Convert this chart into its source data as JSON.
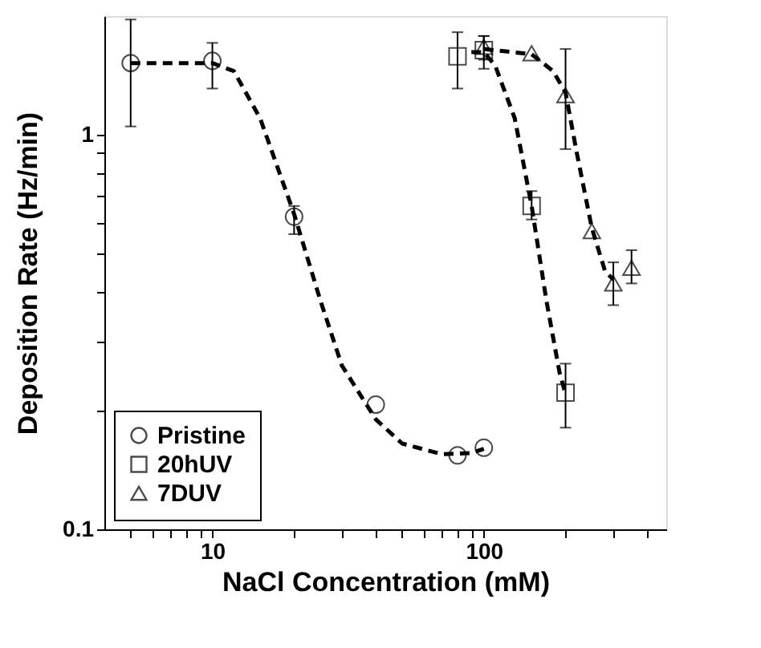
{
  "chart_data": {
    "type": "scatter",
    "xlabel": "NaCl Concentration (mM)",
    "ylabel": "Deposition Rate (Hz/min)",
    "log": "xy",
    "grid": false,
    "legend": "bottom left",
    "xlim": [
      4,
      470
    ],
    "ylim": [
      0.1,
      2
    ],
    "xticks": [
      {
        "value": 5,
        "label": null
      },
      {
        "value": 6,
        "label": null
      },
      {
        "value": 7,
        "label": null
      },
      {
        "value": 8,
        "label": null
      },
      {
        "value": 9,
        "label": null
      },
      10,
      {
        "value": 20,
        "label": null
      },
      {
        "value": 30,
        "label": null
      },
      {
        "value": 40,
        "label": null
      },
      {
        "value": 50,
        "label": null
      },
      {
        "value": 60,
        "label": null
      },
      {
        "value": 70,
        "label": null
      },
      {
        "value": 80,
        "label": null
      },
      {
        "value": 90,
        "label": null
      },
      100,
      {
        "value": 200,
        "label": null
      },
      {
        "value": 300,
        "label": null
      },
      {
        "value": 400,
        "label": null
      }
    ],
    "yticks": [
      0.1,
      {
        "value": 0.2,
        "label": null
      },
      {
        "value": 0.3,
        "label": null
      },
      {
        "value": 0.4,
        "label": null
      },
      {
        "value": 0.5,
        "label": null
      },
      {
        "value": 0.6,
        "label": null
      },
      {
        "value": 0.7,
        "label": null
      },
      {
        "value": 0.8,
        "label": null
      },
      {
        "value": 0.9,
        "label": null
      },
      1
    ],
    "series": [
      {
        "name": "Pristine",
        "color": "#000000",
        "marker": "circle",
        "x": [
          5,
          10,
          20,
          40,
          80,
          100
        ],
        "values": [
          1.52,
          1.54,
          0.62,
          0.207,
          0.154,
          0.161
        ],
        "errors": [
          [
            1.05,
            1.96
          ],
          [
            1.31,
            1.71
          ],
          [
            0.56,
            0.66
          ],
          null,
          null,
          null
        ]
      },
      {
        "name": "20hUV",
        "color": "#000000",
        "marker": "square",
        "x": [
          80,
          100,
          150,
          200
        ],
        "values": [
          1.58,
          1.64,
          0.66,
          0.222
        ],
        "errors": [
          [
            1.31,
            1.82
          ],
          [
            1.47,
            1.78
          ],
          [
            0.61,
            0.72
          ],
          [
            0.181,
            0.263
          ]
        ]
      },
      {
        "name": "7DUV",
        "color": "#000000",
        "marker": "triangle",
        "x": [
          100,
          150,
          200,
          250,
          300,
          350
        ],
        "values": [
          1.67,
          1.61,
          1.26,
          0.57,
          0.42,
          0.46
        ],
        "errors": [
          [
            1.55,
            1.78
          ],
          null,
          [
            0.92,
            1.65
          ],
          null,
          [
            0.37,
            0.475
          ],
          [
            0.42,
            0.51
          ]
        ]
      },
      {
        "type": "line",
        "color": "#000000",
        "line_style": "dashed",
        "marker": "none",
        "x": [
          5,
          10,
          12,
          15,
          20,
          25,
          30,
          40,
          50,
          70,
          90,
          100
        ],
        "values": [
          1.52,
          1.52,
          1.45,
          1.1,
          0.63,
          0.38,
          0.26,
          0.19,
          0.165,
          0.155,
          0.156,
          0.16
        ]
      },
      {
        "type": "line",
        "color": "#000000",
        "line_style": "dashed",
        "marker": "none",
        "x": [
          90,
          100,
          110,
          130,
          150,
          170,
          190,
          200
        ],
        "values": [
          1.62,
          1.62,
          1.5,
          1.1,
          0.66,
          0.38,
          0.25,
          0.22
        ]
      },
      {
        "type": "line",
        "color": "#000000",
        "line_style": "dashed",
        "marker": "none",
        "x": [
          100,
          150,
          180,
          200,
          220,
          250,
          280,
          300
        ],
        "values": [
          1.65,
          1.6,
          1.45,
          1.28,
          0.9,
          0.58,
          0.45,
          0.43
        ]
      }
    ]
  }
}
